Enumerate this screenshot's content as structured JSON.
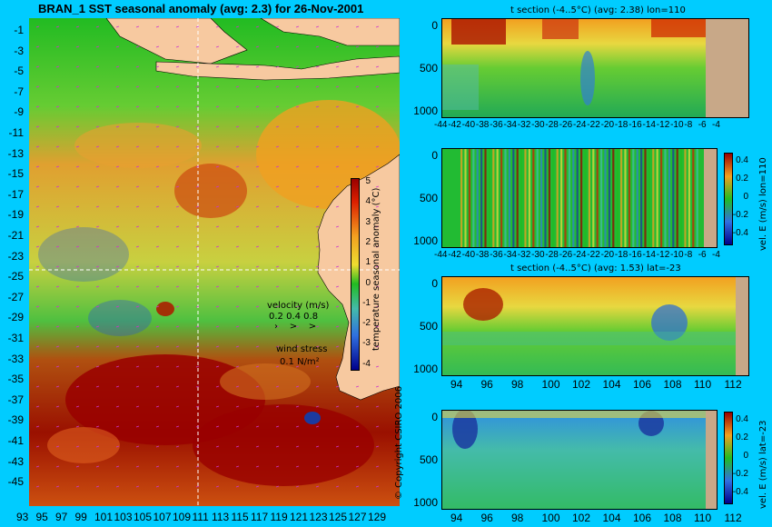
{
  "map": {
    "title": "BRAN_1  SST seasonal anomaly  (avg: 2.3)  for 26-Nov-2001",
    "lat_ticks": [
      "-1",
      "-3",
      "-5",
      "-7",
      "-9",
      "-11",
      "-13",
      "-15",
      "-17",
      "-19",
      "-21",
      "-23",
      "-25",
      "-27",
      "-29",
      "-31",
      "-33",
      "-35",
      "-37",
      "-39",
      "-41",
      "-43",
      "-45"
    ],
    "lon_ticks": [
      "93",
      "95",
      "97",
      "99",
      "101",
      "103",
      "105",
      "107",
      "109",
      "111",
      "113",
      "115",
      "117",
      "119",
      "121",
      "123",
      "125",
      "127",
      "129"
    ],
    "colorbar": {
      "label": "temperature seasonal anomaly (°C)",
      "ticks": [
        "5",
        "4",
        "3",
        "2",
        "1",
        "0",
        "-1",
        "-2",
        "-3",
        "-4"
      ]
    },
    "legend": {
      "velocity_label": "velocity (m/s)",
      "velocity_scale": "0.2 0.4 0.8",
      "wind_label": "wind stress",
      "wind_value": "0.1 N/m²"
    },
    "copyright": "© Copyright CSIRO 2006"
  },
  "panels": [
    {
      "id": "t-lon",
      "title": "t section (-4..5°C)  (avg: 2.38)  lon=110",
      "y_ticks": [
        "0",
        "500",
        "1000"
      ],
      "x_ticks": [
        "-44",
        "-42",
        "-40",
        "-38",
        "-36",
        "-34",
        "-32",
        "-30",
        "-28",
        "-26",
        "-24",
        "-22",
        "-20",
        "-18",
        "-16",
        "-14",
        "-12",
        "-10",
        "-8",
        "-6",
        "-4"
      ],
      "colorbar": null
    },
    {
      "id": "u-lon",
      "title": "",
      "y_ticks": [
        "0",
        "500",
        "1000"
      ],
      "x_ticks": [
        "-44",
        "-42",
        "-40",
        "-38",
        "-36",
        "-34",
        "-32",
        "-30",
        "-28",
        "-26",
        "-24",
        "-22",
        "-20",
        "-18",
        "-16",
        "-14",
        "-12",
        "-10",
        "-8",
        "-6",
        "-4"
      ],
      "colorbar": {
        "label": "vel. E (m/s) lon=110",
        "ticks": [
          "0.4",
          "0.2",
          "0",
          "-0.2",
          "-0.4"
        ]
      }
    },
    {
      "id": "t-lat",
      "title": "t section (-4..5°C)  (avg: 1.53)  lat=-23",
      "y_ticks": [
        "0",
        "500",
        "1000"
      ],
      "x_ticks": [
        "94",
        "96",
        "98",
        "100",
        "102",
        "104",
        "106",
        "108",
        "110",
        "112"
      ],
      "colorbar": null
    },
    {
      "id": "u-lat",
      "title": "",
      "y_ticks": [
        "0",
        "500",
        "1000"
      ],
      "x_ticks": [
        "94",
        "96",
        "98",
        "100",
        "102",
        "104",
        "106",
        "108",
        "110",
        "112"
      ],
      "colorbar": {
        "label": "vel. E (m/s) lat=-23",
        "ticks": [
          "0.4",
          "0.2",
          "0",
          "-0.2",
          "-0.4"
        ]
      }
    }
  ],
  "colors": {
    "background": "#00ccff",
    "land": "#f7c9a0",
    "section_land": "#c8a888",
    "anomaly_high": "#990000",
    "anomaly_mid": "#f2a020",
    "anomaly_zero": "#22bb22",
    "anomaly_low": "#00008b"
  }
}
